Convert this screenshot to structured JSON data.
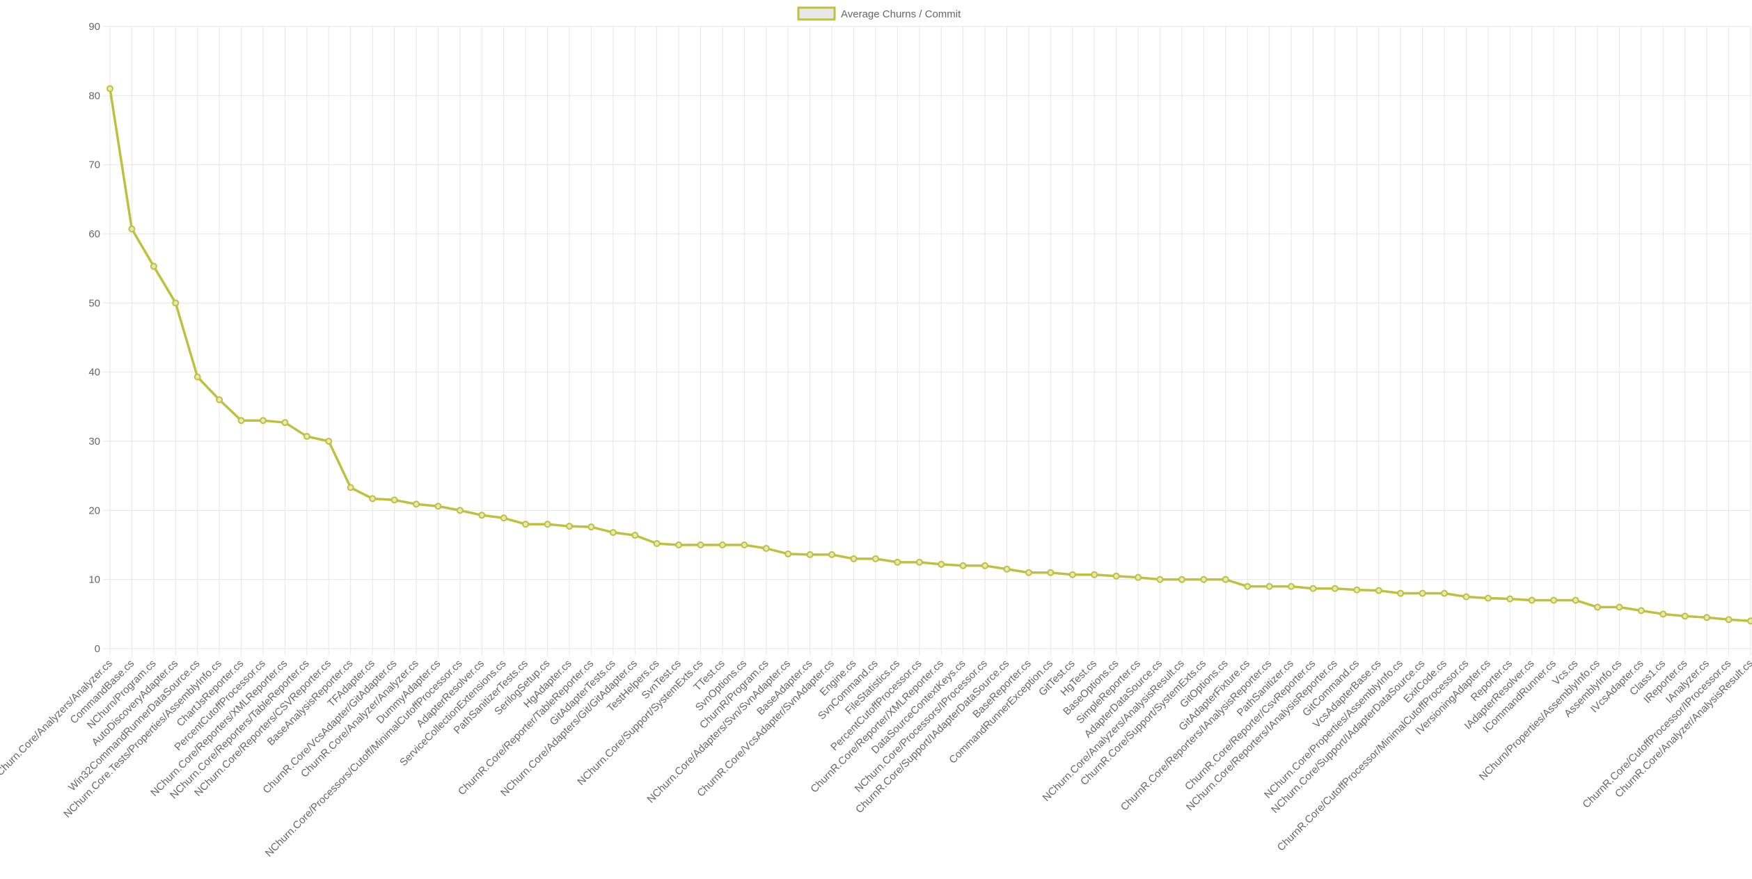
{
  "chart_data": {
    "type": "line",
    "legend": {
      "placement": "top",
      "label": "Average Churns / Commit"
    },
    "colors": {
      "series": "#bfbf40",
      "grid": "#e6e6e6",
      "text": "#666666"
    },
    "grid": true,
    "ylim": [
      0,
      90
    ],
    "yticks": [
      0,
      10,
      20,
      30,
      40,
      50,
      60,
      70,
      80,
      90
    ],
    "categories": [
      "NChurn.Core/Analyzers/Analyzer.cs",
      "CommandBase.cs",
      "NChurn/Program.cs",
      "AutoDiscoveryAdapter.cs",
      "Win32CommandRunnerDataSource.cs",
      "NChurn.Core.Tests/Properties/AssemblyInfo.cs",
      "ChartJsReporter.cs",
      "PercentCutoffProcessor.cs",
      "NChurn.Core/Reporters/XMLReporter.cs",
      "NChurn.Core/Reporters/TableReporter.cs",
      "NChurn.Core/Reporters/CSVReporter.cs",
      "BaseAnalysisReporter.cs",
      "TFAdapter.cs",
      "ChurnR.Core/VcsAdapter/GitAdapter.cs",
      "ChurnR.Core/Analyzer/Analyzer.cs",
      "DummyAdapter.cs",
      "NChurn.Core/Processors/Cutoff/MinimalCutoffProcessor.cs",
      "AdapterResolver.cs",
      "ServiceCollectionExtensions.cs",
      "PathSanitizerTests.cs",
      "SerilogSetup.cs",
      "HgAdapter.cs",
      "ChurnR.Core/Reporter/TableReporter.cs",
      "GitAdapterTests.cs",
      "NChurn.Core/Adapters/Git/GitAdapter.cs",
      "TestHelpers.cs",
      "SvnTest.cs",
      "NChurn.Core/Support/SystemExts.cs",
      "TTest.cs",
      "SvnOptions.cs",
      "ChurnR/Program.cs",
      "NChurn.Core/Adapters/Svn/SvnAdapter.cs",
      "BaseAdapter.cs",
      "ChurnR.Core/VcsAdapter/SvnAdapter.cs",
      "Engine.cs",
      "SvnCommand.cs",
      "FileStatistics.cs",
      "PercentCutoffProcessor.cs",
      "ChurnR.Core/Reporter/XMLReporter.cs",
      "DataSourceContextKeys.cs",
      "NChurn.Core/Processors/IProcessor.cs",
      "ChurnR.Core/Support/IAdapterDataSource.cs",
      "BaseReporter.cs",
      "CommandRunnerException.cs",
      "GitTest.cs",
      "HgTest.cs",
      "BaseOptions.cs",
      "SimpleReporter.cs",
      "AdapterDataSource.cs",
      "NChurn.Core/Analyzers/AnalysisResult.cs",
      "ChurnR.Core/Support/SystemExts.cs",
      "GitOptions.cs",
      "GitAdapterFixture.cs",
      "ChurnR.Core/Reporters/IAnalysisReporter.cs",
      "PathSanitizer.cs",
      "ChurnR.Core/Reporter/CsvReporter.cs",
      "NChurn.Core/Reporters/IAnalysisReporter.cs",
      "GitCommand.cs",
      "VcsAdapterBase.cs",
      "NChurn.Core/Properties/AssemblyInfo.cs",
      "NChurn.Core/Support/IAdapterDataSource.cs",
      "ExitCode.cs",
      "ChurnR.Core/CutoffProcessor/MinimalCutoffProcessor.cs",
      "IVersioningAdapter.cs",
      "Reporter.cs",
      "IAdapterResolver.cs",
      "ICommandRunner.cs",
      "Vcs.cs",
      "NChurn/Properties/AssemblyInfo.cs",
      "AssemblyInfo.cs",
      "IVcsAdapter.cs",
      "Class1.cs",
      "IReporter.cs",
      "IAnalyzer.cs",
      "ChurnR.Core/CutoffProcessor/IProcessor.cs",
      "ChurnR.Core/Analyzer/AnalysisResult.cs"
    ],
    "series": [
      {
        "name": "Average Churns / Commit",
        "values": [
          81,
          60.7,
          55.3,
          50,
          39.3,
          36,
          33,
          33,
          32.7,
          30.7,
          30,
          23.3,
          21.7,
          21.5,
          20.9,
          20.6,
          20,
          19.3,
          18.9,
          18,
          18,
          17.7,
          17.6,
          16.8,
          16.4,
          15.2,
          15,
          15,
          15,
          15,
          14.5,
          13.7,
          13.6,
          13.6,
          13,
          13,
          12.5,
          12.5,
          12.2,
          12,
          12,
          11.5,
          11,
          11,
          10.7,
          10.7,
          10.5,
          10.3,
          10,
          10,
          10,
          10,
          9,
          9,
          9,
          8.7,
          8.7,
          8.5,
          8.4,
          8,
          8,
          8,
          7.5,
          7.3,
          7.2,
          7,
          7,
          7,
          6,
          6,
          5.5,
          5,
          4.7,
          4.5,
          4.2,
          4
        ]
      }
    ]
  }
}
